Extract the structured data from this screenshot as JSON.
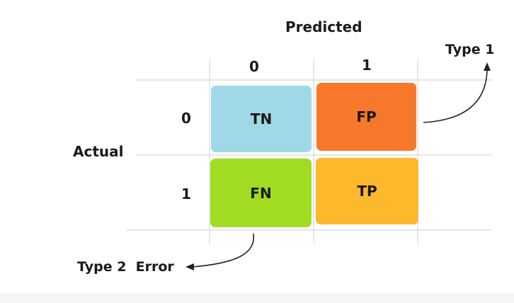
{
  "axes": {
    "predicted_title": "Predicted",
    "actual_title": "Actual",
    "predicted_ticks": [
      "0",
      "1"
    ],
    "actual_ticks": [
      "0",
      "1"
    ]
  },
  "cells": [
    {
      "label": "TN",
      "color": "#9fd8e6"
    },
    {
      "label": "FP",
      "color": "#f7782b"
    },
    {
      "label": "FN",
      "color": "#a2dc22"
    },
    {
      "label": "TP",
      "color": "#fdb82c"
    }
  ],
  "annotations": {
    "type1": "Type 1",
    "type2": "Type 2  Error"
  },
  "colors": {
    "grid": "#cfcfcf",
    "arrow": "#222222"
  }
}
